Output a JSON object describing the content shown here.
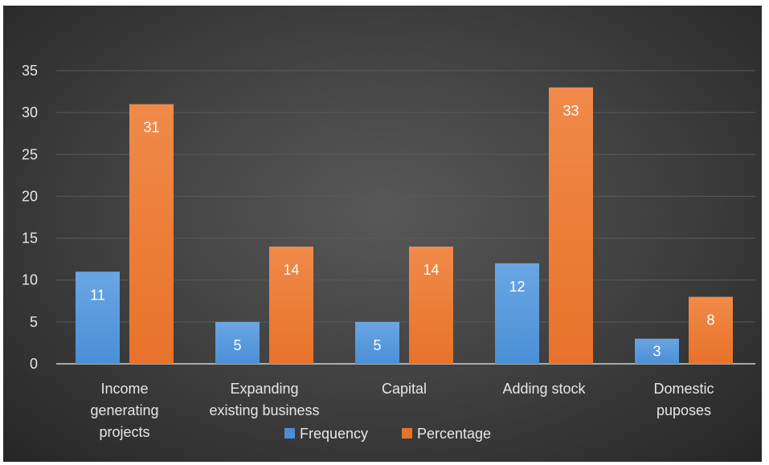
{
  "chart_data": {
    "type": "bar",
    "categories": [
      [
        "Income",
        "generating",
        "projects"
      ],
      [
        "Expanding",
        "existing business"
      ],
      [
        "Capital"
      ],
      [
        "Adding stock"
      ],
      [
        "Domestic",
        "puposes"
      ]
    ],
    "series": [
      {
        "name": "Frequency",
        "values": [
          11,
          5,
          5,
          12,
          3
        ],
        "color": "#4a8fd6",
        "color_top": "#6aa6e2"
      },
      {
        "name": "Percentage",
        "values": [
          31,
          14,
          14,
          33,
          8
        ],
        "color": "#e8722a",
        "color_top": "#f08a4a"
      }
    ],
    "title": "",
    "xlabel": "",
    "ylabel": "",
    "ylim": [
      0,
      35
    ],
    "yticks": [
      0,
      5,
      10,
      15,
      20,
      25,
      30,
      35
    ],
    "grid": true,
    "legend": "bottom",
    "data_labels": true,
    "colors": {
      "background": "#3e3e3e",
      "gridline": "#5a5a5a",
      "axis": "#d0d0d0",
      "text": "#e6e6e6"
    }
  }
}
